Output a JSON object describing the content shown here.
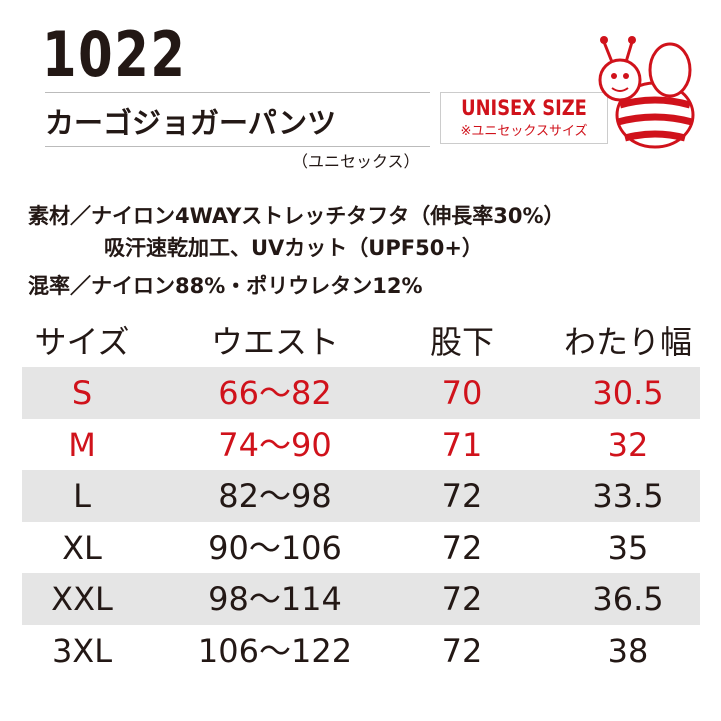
{
  "header": {
    "model": "1022",
    "name": "カーゴジョガーパンツ",
    "reading": "（ユニセックス）"
  },
  "badge": {
    "title": "UNISEX SIZE",
    "subtitle": "※ユニセックスサイズ"
  },
  "specs": [
    "素材／ナイロン4WAYストレッチタフタ（伸長率30%）",
    "吸汗速乾加工、UVカット（UPF50+）",
    "混率／ナイロン88%・ポリウレタン12%"
  ],
  "table": {
    "header": [
      "サイズ",
      "ウエスト",
      "股下",
      "わたり幅"
    ],
    "rows": [
      [
        "S",
        "66～82",
        "70",
        "30.5"
      ],
      [
        "M",
        "74～90",
        "71",
        "32"
      ],
      [
        "L",
        "82～98",
        "72",
        "33.5"
      ],
      [
        "XL",
        "90～106",
        "72",
        "35"
      ],
      [
        "XXL",
        "98～114",
        "72",
        "36.5"
      ],
      [
        "3XL",
        "106～122",
        "72",
        "38"
      ]
    ]
  }
}
